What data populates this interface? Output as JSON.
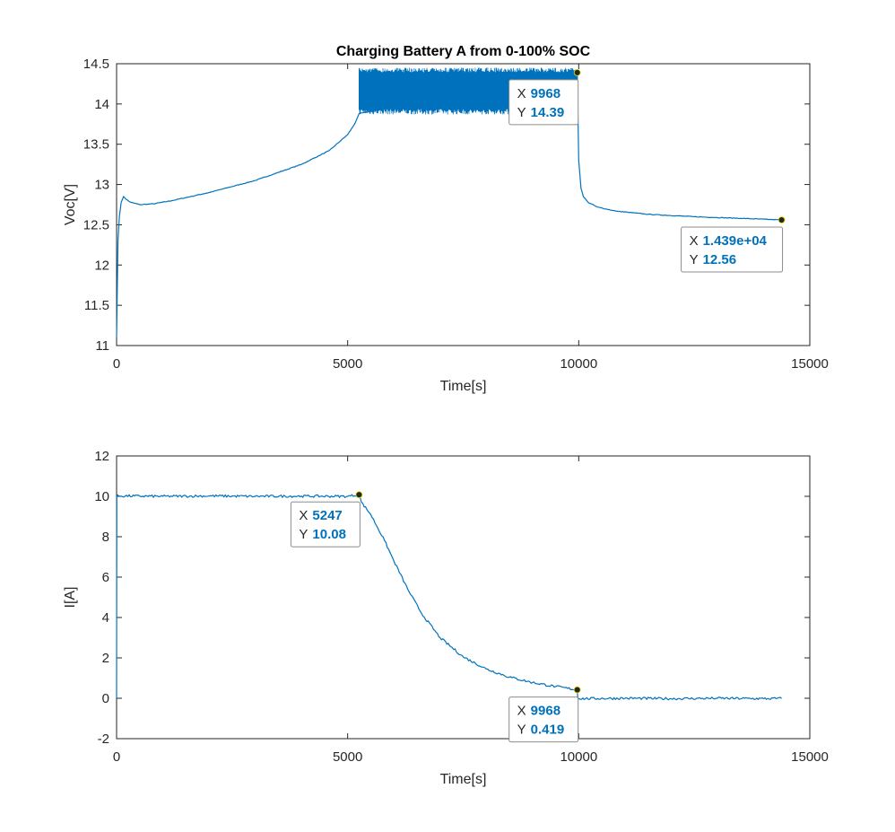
{
  "chart_data": [
    {
      "type": "line",
      "title": "Charging Battery A from 0-100% SOC",
      "xlabel": "Time[s]",
      "ylabel": "Voc[V]",
      "xlim": [
        0,
        15000
      ],
      "ylim": [
        11,
        14.5
      ],
      "xticks": [
        0,
        5000,
        10000,
        15000
      ],
      "yticks": [
        11,
        11.5,
        12,
        12.5,
        13,
        13.5,
        14,
        14.5
      ],
      "xtick_labels": [
        "0",
        "5000",
        "10000",
        "15000"
      ],
      "ytick_labels": [
        "11",
        "11.5",
        "12",
        "12.5",
        "13",
        "13.5",
        "14",
        "14.5"
      ],
      "grid": false,
      "color": "#0072bd",
      "series": [
        {
          "x": [
            0,
            30,
            60,
            100,
            150,
            200,
            300,
            500,
            800,
            1200,
            2000,
            3000,
            4000,
            4600,
            5000,
            5150,
            5247,
            9968,
            9985,
            10000,
            10050,
            10100,
            10200,
            10400,
            10800,
            11500,
            12500,
            13500,
            14390
          ],
          "y": [
            11.1,
            12.3,
            12.6,
            12.78,
            12.85,
            12.82,
            12.78,
            12.75,
            12.76,
            12.8,
            12.9,
            13.05,
            13.25,
            13.42,
            13.62,
            13.75,
            13.88,
            14.39,
            13.8,
            13.3,
            12.95,
            12.85,
            12.78,
            12.72,
            12.67,
            12.63,
            12.6,
            12.58,
            12.56
          ]
        }
      ],
      "noise_band": {
        "x": [
          5247,
          9968
        ],
        "y": [
          13.87,
          14.45
        ]
      },
      "datatips": [
        {
          "X": "9968",
          "Y": "14.39",
          "x": 9968,
          "y": 14.39
        },
        {
          "X": "1.439e+04",
          "Y": "12.56",
          "x": 14390,
          "y": 12.56
        }
      ]
    },
    {
      "type": "line",
      "title": "",
      "xlabel": "Time[s]",
      "ylabel": "I[A]",
      "xlim": [
        0,
        15000
      ],
      "ylim": [
        -2,
        12
      ],
      "xticks": [
        0,
        5000,
        10000,
        15000
      ],
      "yticks": [
        -2,
        0,
        2,
        4,
        6,
        8,
        10,
        12
      ],
      "xtick_labels": [
        "0",
        "5000",
        "10000",
        "15000"
      ],
      "ytick_labels": [
        "-2",
        "0",
        "2",
        "4",
        "6",
        "8",
        "10",
        "12"
      ],
      "grid": false,
      "color": "#0072bd",
      "series": [
        {
          "x": [
            0,
            5,
            40,
            1000,
            2000,
            3000,
            4000,
            5000,
            5247,
            5300,
            5500,
            5800,
            6000,
            6300,
            6600,
            7000,
            7500,
            8000,
            8500,
            9000,
            9500,
            9968,
            9980,
            10000,
            11000,
            12000,
            13000,
            14000,
            14390
          ],
          "y": [
            0,
            10.0,
            10.02,
            10.0,
            10.02,
            10.0,
            10.01,
            10.0,
            10.08,
            9.7,
            9.1,
            7.8,
            6.8,
            5.4,
            4.2,
            3.0,
            2.05,
            1.45,
            1.05,
            0.78,
            0.58,
            0.419,
            0.05,
            -0.02,
            0.0,
            -0.02,
            0.0,
            -0.02,
            -0.01
          ]
        }
      ],
      "datatips": [
        {
          "X": "5247",
          "Y": "10.08",
          "x": 5247,
          "y": 10.08
        },
        {
          "X": "9968",
          "Y": "0.419",
          "x": 9968,
          "y": 0.419
        }
      ]
    }
  ],
  "datatip_key_x": "X",
  "datatip_key_y": "Y"
}
